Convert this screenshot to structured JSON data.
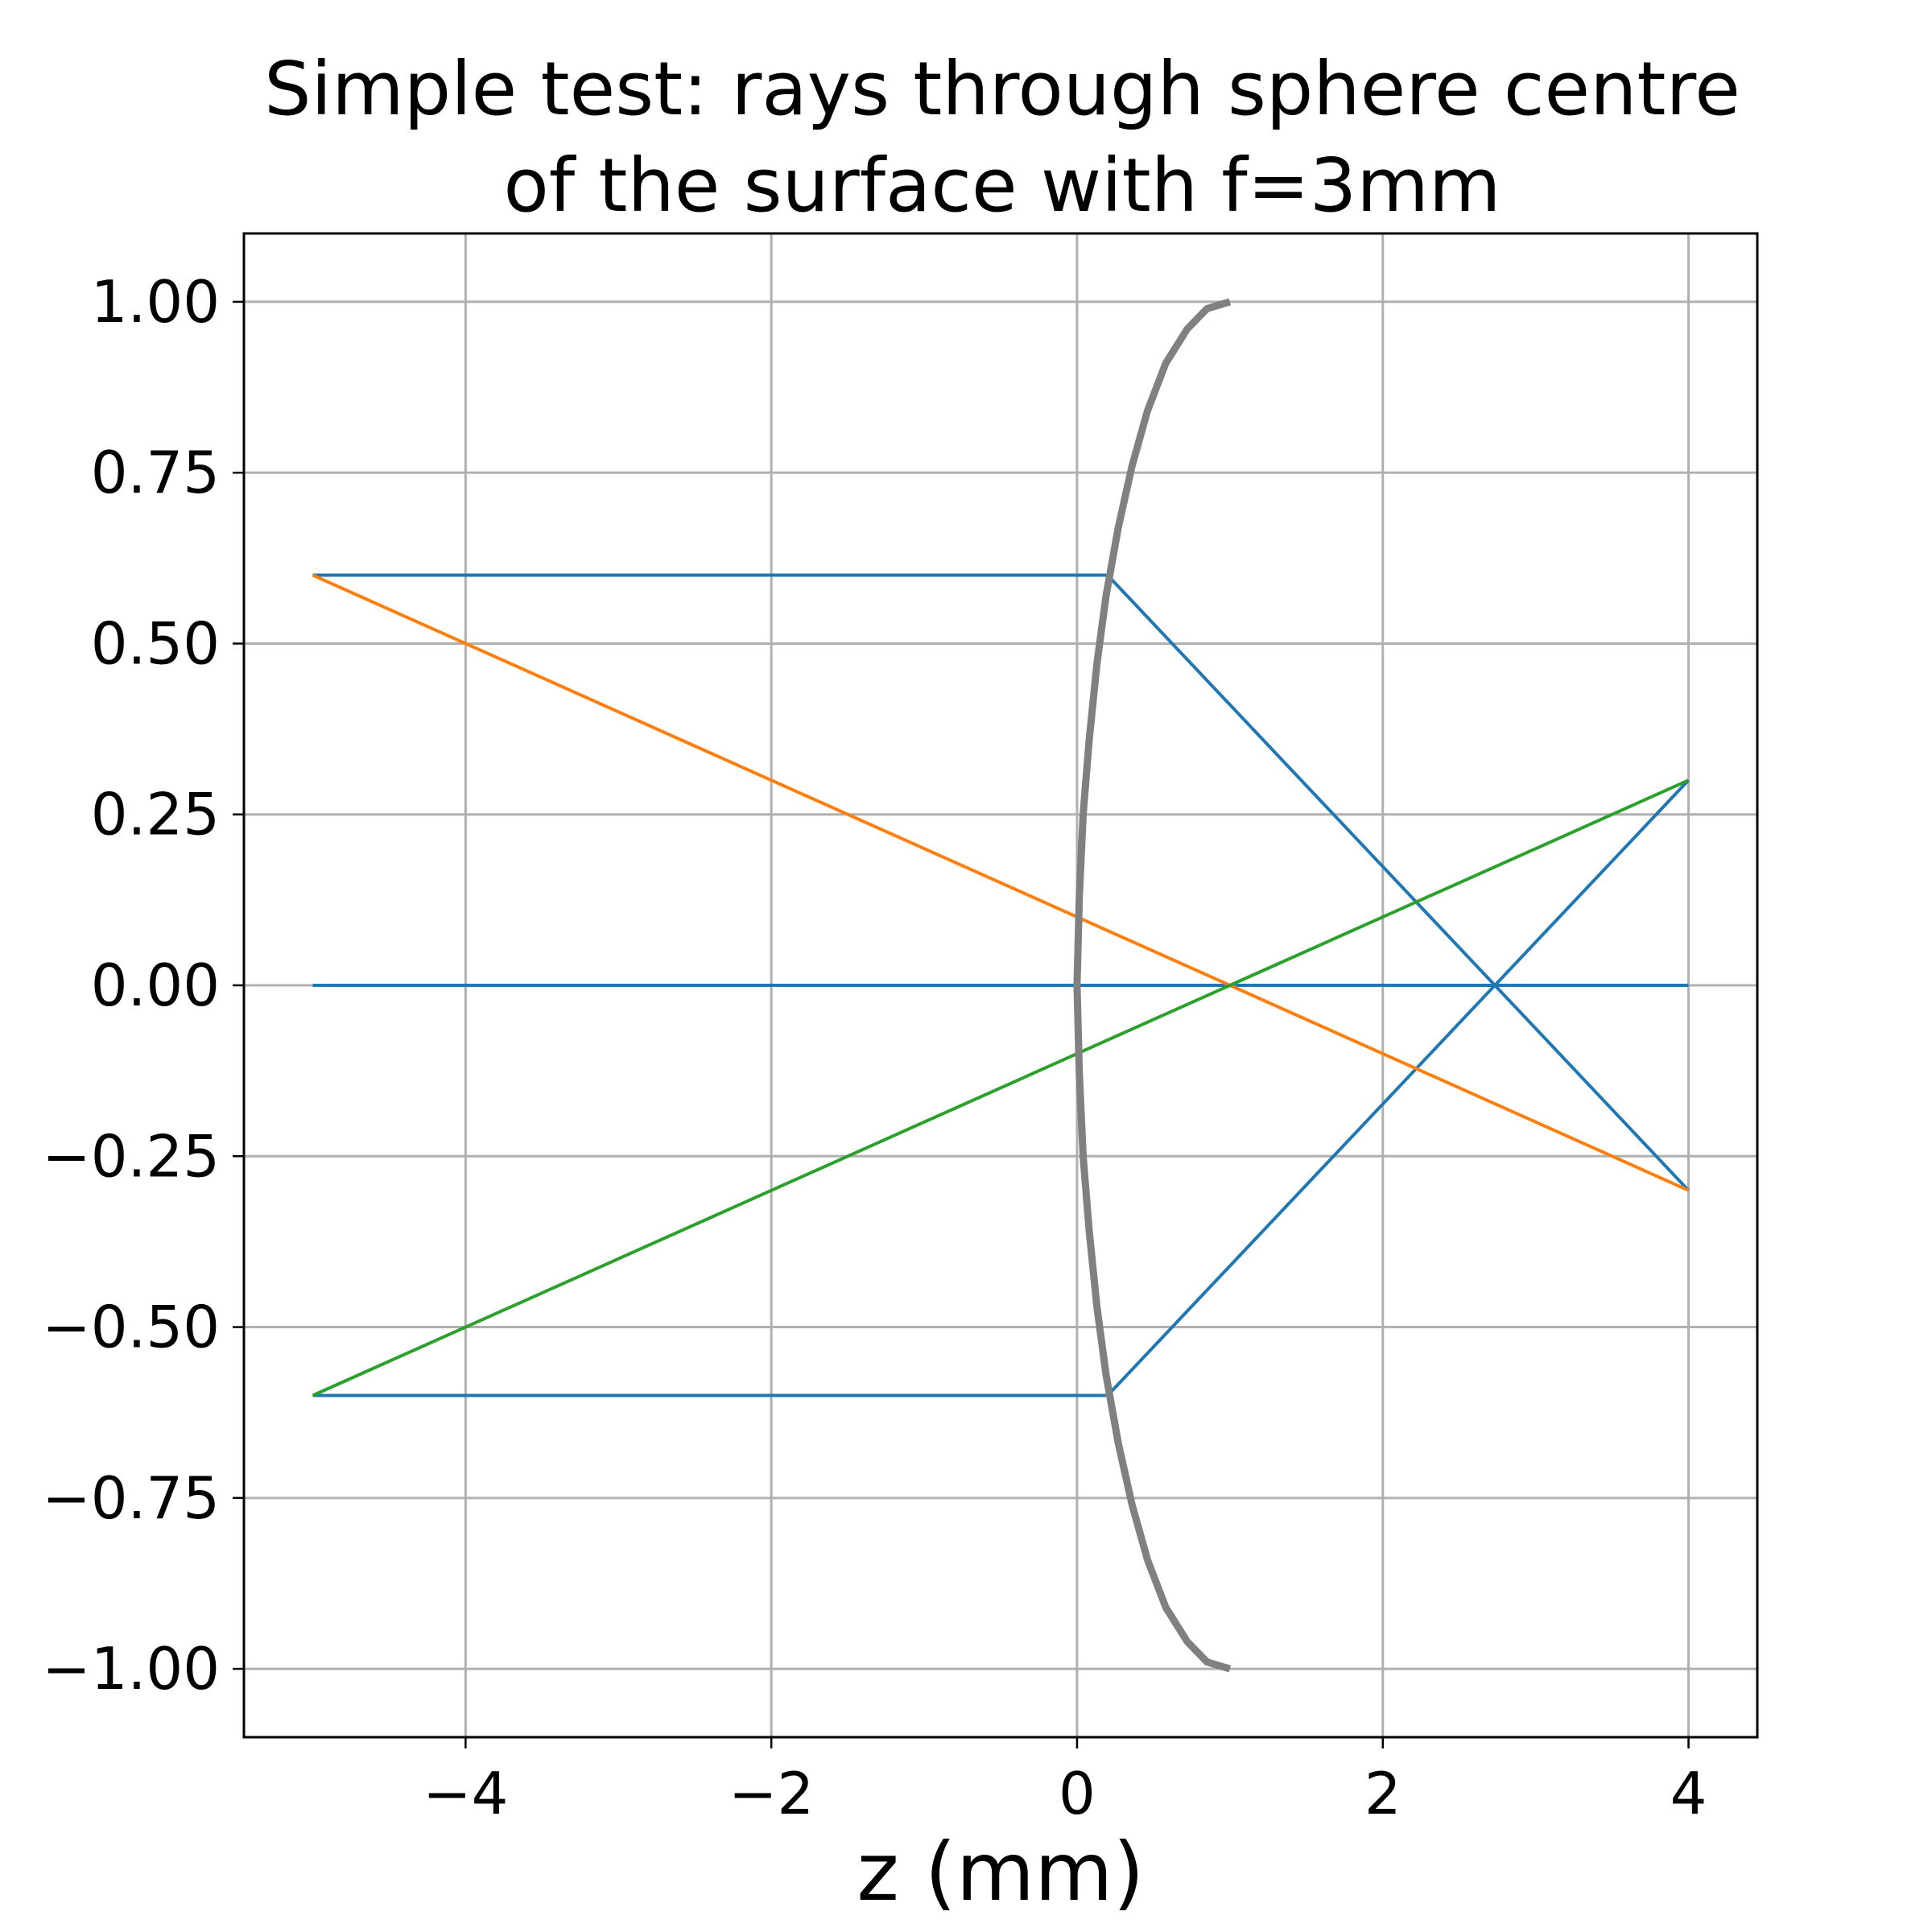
{
  "chart_data": {
    "type": "line",
    "title": [
      "Simple test: rays through sphere centre",
      "of the surface with f=3mm"
    ],
    "xlabel": "z (mm)",
    "ylabel": "",
    "xlim": [
      -5.45,
      4.45
    ],
    "ylim": [
      -1.1,
      1.1
    ],
    "grid": true,
    "x_ticks": [
      -4,
      -2,
      0,
      2,
      4
    ],
    "x_tick_labels": [
      "−4",
      "−2",
      "0",
      "2",
      "4"
    ],
    "y_ticks": [
      1.0,
      0.75,
      0.5,
      0.25,
      0.0,
      -0.25,
      -0.5,
      -0.75,
      -1.0
    ],
    "y_tick_labels": [
      "1.00",
      "0.75",
      "0.50",
      "0.25",
      "0.00",
      "−0.25",
      "−0.50",
      "−0.75",
      "−1.00"
    ],
    "series": [
      {
        "color": "#1f77b4",
        "width": 4,
        "points": [
          [
            -5,
            0.6
          ],
          [
            0.2,
            0.6
          ],
          [
            4,
            -0.3
          ]
        ]
      },
      {
        "color": "#1f77b4",
        "width": 4,
        "points": [
          [
            -5,
            0
          ],
          [
            4,
            0
          ]
        ]
      },
      {
        "color": "#1f77b4",
        "width": 4,
        "points": [
          [
            -5,
            -0.6
          ],
          [
            0.2,
            -0.6
          ],
          [
            4,
            0.3
          ]
        ]
      },
      {
        "color": "#ff7f0e",
        "width": 4,
        "points": [
          [
            -5,
            0.6
          ],
          [
            4,
            -0.3
          ]
        ]
      },
      {
        "color": "#2ca02c",
        "width": 4,
        "points": [
          [
            -5,
            -0.6
          ],
          [
            4,
            0.3
          ]
        ]
      },
      {
        "color": "#808080",
        "width": 9,
        "points": [
          [
            1.0,
            1.0
          ],
          [
            0.85,
            0.99
          ],
          [
            0.72,
            0.96
          ],
          [
            0.58,
            0.91
          ],
          [
            0.46,
            0.84
          ],
          [
            0.36,
            0.76
          ],
          [
            0.27,
            0.67
          ],
          [
            0.19,
            0.57
          ],
          [
            0.13,
            0.47
          ],
          [
            0.08,
            0.36
          ],
          [
            0.04,
            0.25
          ],
          [
            0.015,
            0.13
          ],
          [
            0.0,
            0.0
          ],
          [
            0.015,
            -0.13
          ],
          [
            0.04,
            -0.25
          ],
          [
            0.08,
            -0.36
          ],
          [
            0.13,
            -0.47
          ],
          [
            0.19,
            -0.57
          ],
          [
            0.27,
            -0.67
          ],
          [
            0.36,
            -0.76
          ],
          [
            0.46,
            -0.84
          ],
          [
            0.58,
            -0.91
          ],
          [
            0.72,
            -0.96
          ],
          [
            0.85,
            -0.99
          ],
          [
            1.0,
            -1.0
          ]
        ]
      }
    ]
  }
}
